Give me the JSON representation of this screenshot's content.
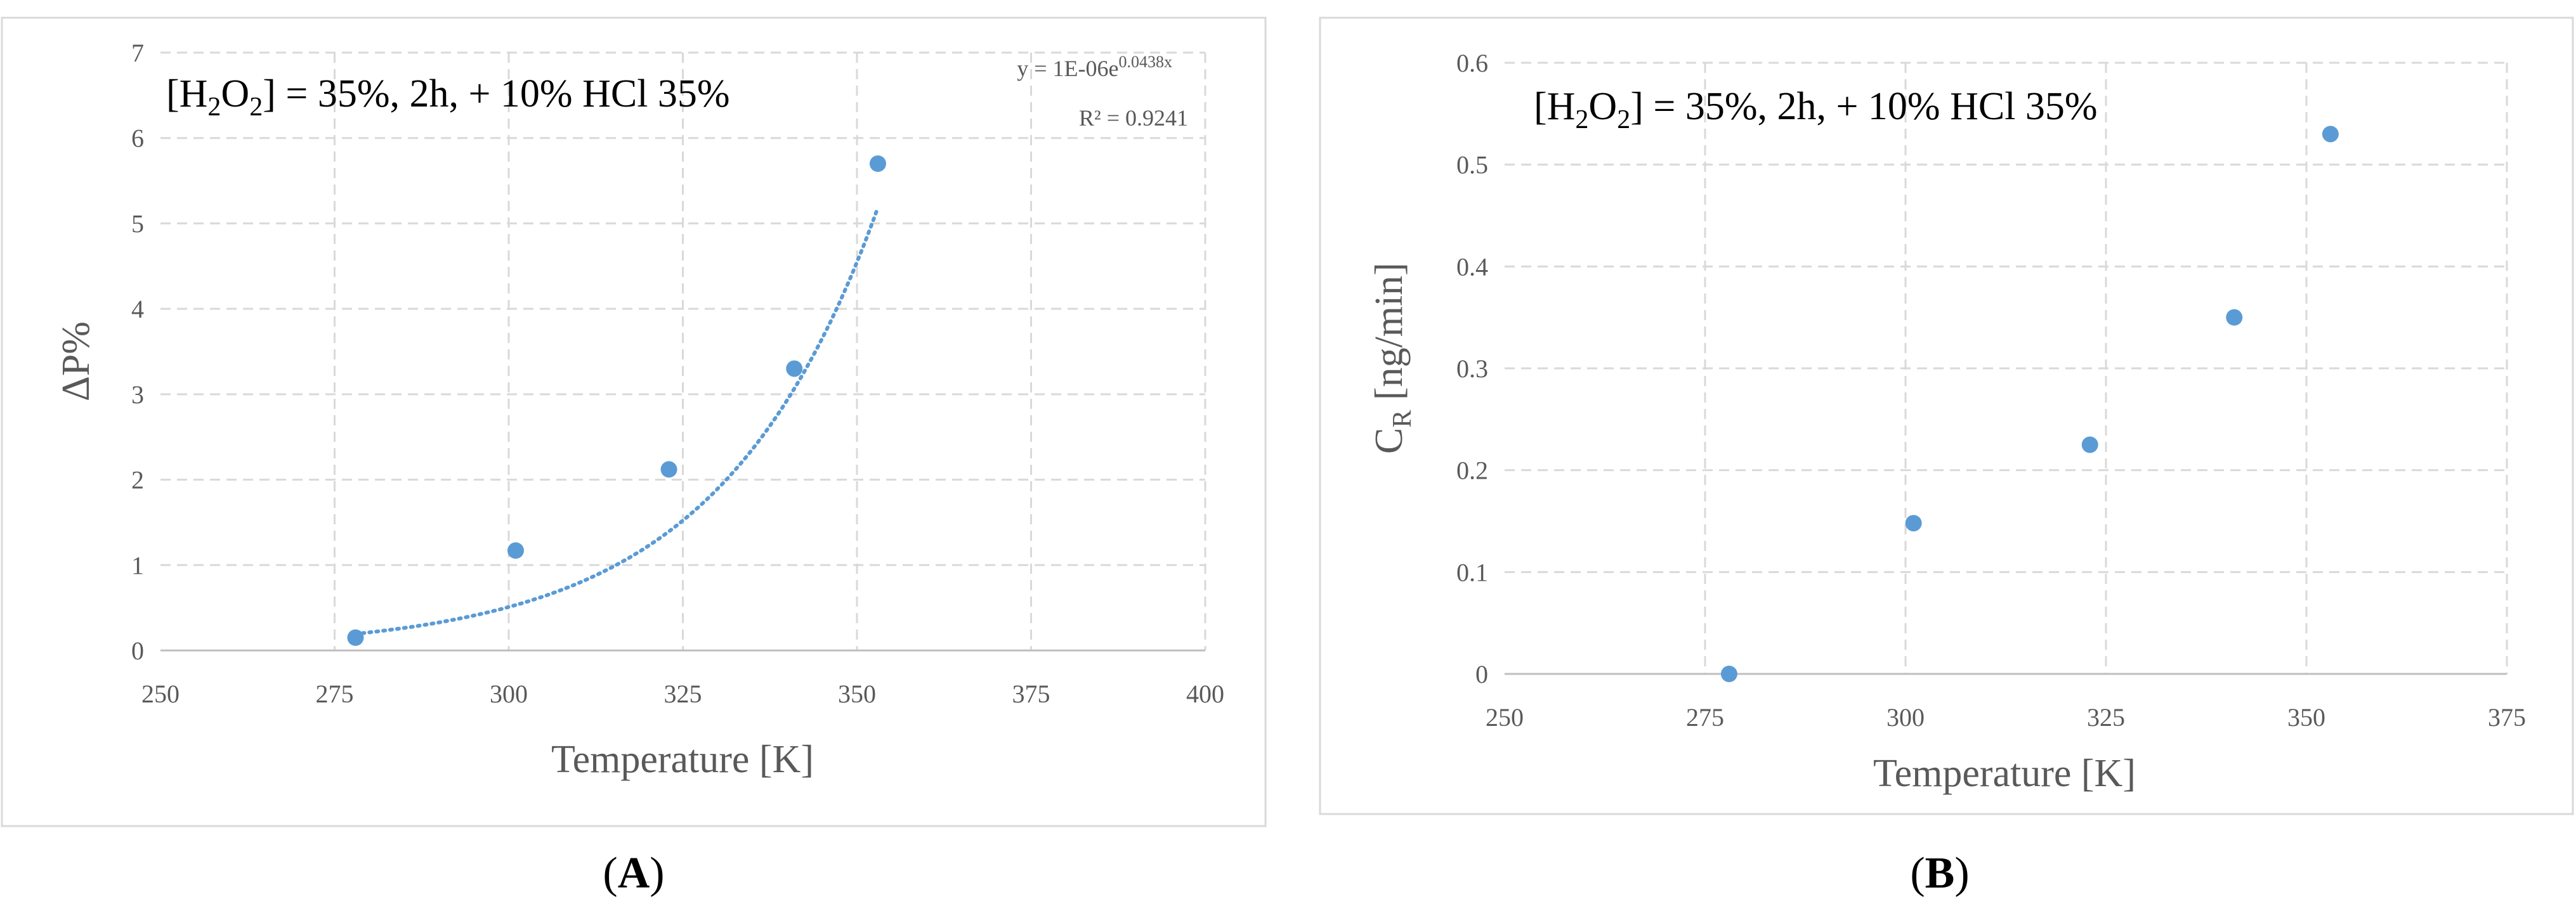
{
  "chart_data": [
    {
      "type": "scatter",
      "panel_label": "A",
      "annotation": {
        "pre": "[H",
        "sub1": "2",
        "mid": "O",
        "sub2": "2",
        "post": "] = 35%,  2h, + 10% HCl 35%"
      },
      "trendline": {
        "type": "exponential",
        "a": 1e-06,
        "b": 0.0438,
        "x_range": [
          278,
          353
        ],
        "eq_pre": "y = 1E-06e",
        "eq_exp": "0.0438x",
        "r2_label": "R² = 0.9241"
      },
      "xlabel": "Temperature [K]",
      "ylabel": "ΔP%",
      "xlim": [
        250,
        400
      ],
      "ylim": [
        0,
        7
      ],
      "xticks": [
        "250",
        "275",
        "300",
        "325",
        "350",
        "375",
        "400"
      ],
      "yticks": [
        "0",
        "1",
        "2",
        "3",
        "4",
        "5",
        "6",
        "7"
      ],
      "grid": true,
      "series": [
        {
          "x": [
            278,
            301,
            323,
            341,
            353
          ],
          "y": [
            0.15,
            1.17,
            2.12,
            3.3,
            5.7
          ],
          "color": "#5b9bd5"
        }
      ]
    },
    {
      "type": "scatter",
      "panel_label": "B",
      "annotation": {
        "pre": "[H",
        "sub1": "2",
        "mid": "O",
        "sub2": "2",
        "post": "] = 35%,  2h, + 10% HCl 35%"
      },
      "xlabel": "Temperature [K]",
      "ylabel_main": "C",
      "ylabel_sub": "R",
      "ylabel_rest": " [ng/min]",
      "xlim": [
        250,
        375
      ],
      "ylim": [
        0,
        0.6
      ],
      "xticks": [
        "250",
        "275",
        "300",
        "325",
        "350",
        "375"
      ],
      "yticks": [
        "0",
        "0.1",
        "0.2",
        "0.3",
        "0.4",
        "0.5",
        "0.6"
      ],
      "grid": true,
      "series": [
        {
          "x": [
            278,
            301,
            323,
            341,
            353
          ],
          "y": [
            0.0,
            0.148,
            0.225,
            0.35,
            0.53
          ],
          "color": "#5b9bd5"
        }
      ]
    }
  ]
}
